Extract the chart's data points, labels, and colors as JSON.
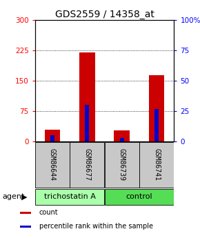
{
  "title": "GDS2559 / 14358_at",
  "samples": [
    "GSM86644",
    "GSM86677",
    "GSM86739",
    "GSM86741"
  ],
  "red_values": [
    30,
    220,
    28,
    165
  ],
  "blue_pct": [
    5,
    30,
    3,
    27
  ],
  "ylim_left": [
    0,
    300
  ],
  "ylim_right": [
    0,
    100
  ],
  "yticks_left": [
    0,
    75,
    150,
    225,
    300
  ],
  "yticks_right": [
    0,
    25,
    50,
    75,
    100
  ],
  "ytick_labels_left": [
    "0",
    "75",
    "150",
    "225",
    "300"
  ],
  "ytick_labels_right": [
    "0",
    "25",
    "50",
    "75",
    "100%"
  ],
  "groups": [
    {
      "label": "trichostatin A",
      "indices": [
        0,
        1
      ],
      "color": "#aaffaa"
    },
    {
      "label": "control",
      "indices": [
        2,
        3
      ],
      "color": "#55dd55"
    }
  ],
  "red_bar_width": 0.45,
  "blue_bar_width": 0.12,
  "red_color": "#cc0000",
  "blue_color": "#0000cc",
  "agent_label": "agent",
  "legend_items": [
    {
      "label": "count",
      "color": "#cc0000"
    },
    {
      "label": "percentile rank within the sample",
      "color": "#0000cc"
    }
  ],
  "grid_color": "black",
  "title_fontsize": 10,
  "tick_fontsize": 7.5,
  "sample_fontsize": 7,
  "group_fontsize": 8,
  "legend_fontsize": 7
}
